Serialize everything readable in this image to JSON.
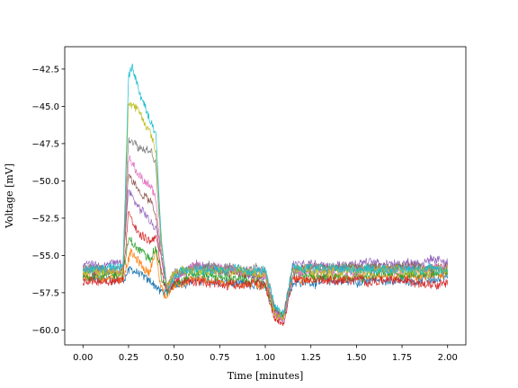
{
  "chart_data": {
    "type": "line",
    "xlabel": "Time [minutes]",
    "ylabel": "Voltage [mV]",
    "xlim": [
      -0.1,
      2.1
    ],
    "ylim": [
      -61.0,
      -41.0
    ],
    "xticks": [
      0.0,
      0.25,
      0.5,
      0.75,
      1.0,
      1.25,
      1.5,
      1.75,
      2.0
    ],
    "xtick_labels": [
      "0.00",
      "0.25",
      "0.50",
      "0.75",
      "1.00",
      "1.25",
      "1.50",
      "1.75",
      "2.00"
    ],
    "yticks": [
      -42.5,
      -45.0,
      -47.5,
      -50.0,
      -52.5,
      -55.0,
      -57.5,
      -60.0
    ],
    "ytick_labels": [
      "−42.5",
      "−45.0",
      "−47.5",
      "−50.0",
      "−52.5",
      "−55.0",
      "−57.5",
      "−60.0"
    ],
    "grid": false,
    "legend": "none",
    "series": [
      {
        "color": "#1f77b4",
        "x": [
          0.0,
          0.22,
          0.26,
          0.3,
          0.4,
          0.42,
          0.45,
          0.5,
          0.6,
          1.0,
          1.05,
          1.1,
          1.15,
          2.0
        ],
        "values": [
          -56.6,
          -56.6,
          -55.8,
          -56.2,
          -57.0,
          -57.4,
          -57.5,
          -57.0,
          -56.6,
          -57.2,
          -58.5,
          -59.0,
          -56.8,
          -56.6
        ]
      },
      {
        "color": "#ff7f0e",
        "x": [
          0.0,
          0.22,
          0.26,
          0.3,
          0.36,
          0.4,
          0.42,
          0.45,
          0.5,
          0.6,
          1.0,
          1.05,
          1.1,
          1.15,
          2.0
        ],
        "values": [
          -56.6,
          -56.5,
          -54.8,
          -55.4,
          -56.2,
          -54.6,
          -56.8,
          -57.8,
          -57.0,
          -56.6,
          -57.0,
          -58.9,
          -59.1,
          -56.6,
          -56.4
        ]
      },
      {
        "color": "#2ca02c",
        "x": [
          0.0,
          0.22,
          0.25,
          0.3,
          0.37,
          0.4,
          0.43,
          0.46,
          0.5,
          0.6,
          1.0,
          1.05,
          1.1,
          1.15,
          2.0
        ],
        "values": [
          -56.4,
          -56.2,
          -54.0,
          -54.6,
          -55.0,
          -54.4,
          -56.4,
          -57.4,
          -56.8,
          -56.2,
          -56.8,
          -58.8,
          -59.2,
          -56.4,
          -56.2
        ]
      },
      {
        "color": "#d62728",
        "x": [
          0.0,
          0.22,
          0.25,
          0.3,
          0.37,
          0.4,
          0.43,
          0.46,
          0.5,
          0.6,
          1.0,
          1.05,
          1.1,
          1.15,
          2.0
        ],
        "values": [
          -56.8,
          -56.6,
          -52.0,
          -53.4,
          -54.0,
          -53.6,
          -56.2,
          -57.4,
          -56.8,
          -56.8,
          -57.0,
          -59.2,
          -59.6,
          -56.6,
          -56.8
        ]
      },
      {
        "color": "#9467bd",
        "x": [
          0.0,
          0.22,
          0.25,
          0.3,
          0.37,
          0.4,
          0.43,
          0.46,
          0.5,
          0.6,
          1.0,
          1.05,
          1.1,
          1.15,
          2.0
        ],
        "values": [
          -55.6,
          -55.6,
          -50.6,
          -51.8,
          -52.8,
          -53.2,
          -55.4,
          -57.0,
          -56.4,
          -55.6,
          -56.4,
          -58.8,
          -59.4,
          -55.6,
          -55.4
        ]
      },
      {
        "color": "#8c564b",
        "x": [
          0.0,
          0.22,
          0.25,
          0.3,
          0.37,
          0.4,
          0.43,
          0.46,
          0.5,
          0.6,
          1.0,
          1.05,
          1.1,
          1.15,
          2.0
        ],
        "values": [
          -56.2,
          -56.0,
          -49.4,
          -50.6,
          -51.4,
          -52.4,
          -55.2,
          -57.2,
          -56.4,
          -55.9,
          -56.4,
          -58.8,
          -59.1,
          -55.8,
          -55.8
        ]
      },
      {
        "color": "#e377c2",
        "x": [
          0.0,
          0.22,
          0.25,
          0.3,
          0.37,
          0.4,
          0.43,
          0.46,
          0.5,
          0.6,
          1.0,
          1.05,
          1.1,
          1.15,
          2.0
        ],
        "values": [
          -55.9,
          -55.8,
          -48.4,
          -49.6,
          -50.4,
          -51.2,
          -55.0,
          -57.2,
          -56.4,
          -55.7,
          -56.2,
          -58.8,
          -59.2,
          -56.2,
          -55.8
        ]
      },
      {
        "color": "#7f7f7f",
        "x": [
          0.0,
          0.22,
          0.25,
          0.3,
          0.37,
          0.4,
          0.43,
          0.46,
          0.5,
          0.6,
          1.0,
          1.05,
          1.1,
          1.15,
          2.0
        ],
        "values": [
          -55.9,
          -55.8,
          -47.0,
          -47.6,
          -48.0,
          -49.0,
          -54.6,
          -57.0,
          -56.2,
          -55.7,
          -56.0,
          -58.6,
          -59.0,
          -55.8,
          -55.8
        ]
      },
      {
        "color": "#bcbd22",
        "x": [
          0.0,
          0.22,
          0.25,
          0.3,
          0.37,
          0.4,
          0.43,
          0.46,
          0.5,
          0.6,
          1.0,
          1.05,
          1.1,
          1.15,
          2.0
        ],
        "values": [
          -56.1,
          -56.0,
          -44.6,
          -45.2,
          -46.8,
          -48.0,
          -54.2,
          -57.0,
          -56.2,
          -56.0,
          -56.2,
          -58.9,
          -59.3,
          -56.0,
          -56.0
        ]
      },
      {
        "color": "#17becf",
        "x": [
          0.0,
          0.22,
          0.25,
          0.27,
          0.3,
          0.37,
          0.4,
          0.43,
          0.46,
          0.5,
          0.6,
          1.0,
          1.05,
          1.1,
          1.15,
          2.0
        ],
        "values": [
          -56.0,
          -55.8,
          -43.0,
          -42.4,
          -43.6,
          -46.0,
          -47.0,
          -54.0,
          -57.6,
          -56.4,
          -56.0,
          -56.0,
          -58.4,
          -59.0,
          -55.8,
          -56.0
        ]
      }
    ]
  }
}
